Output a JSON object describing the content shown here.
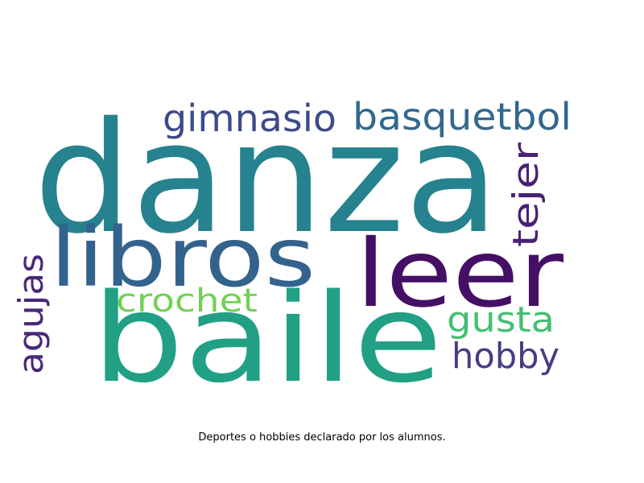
{
  "word_cloud": {
    "words": [
      {
        "text": "danza",
        "color": "#26828e"
      },
      {
        "text": "baile",
        "color": "#22a085"
      },
      {
        "text": "libros",
        "color": "#33638d"
      },
      {
        "text": "leer",
        "color": "#440f64"
      },
      {
        "text": "gimnasio",
        "color": "#3e4a89"
      },
      {
        "text": "basquetbol",
        "color": "#31688e"
      },
      {
        "text": "tejer",
        "color": "#482173"
      },
      {
        "text": "crochet",
        "color": "#73d056"
      },
      {
        "text": "gusta",
        "color": "#45be71"
      },
      {
        "text": "hobby",
        "color": "#433e85"
      },
      {
        "text": "agujas",
        "color": "#482878"
      }
    ]
  },
  "caption": "Deportes o hobbies declarado por los alumnos."
}
